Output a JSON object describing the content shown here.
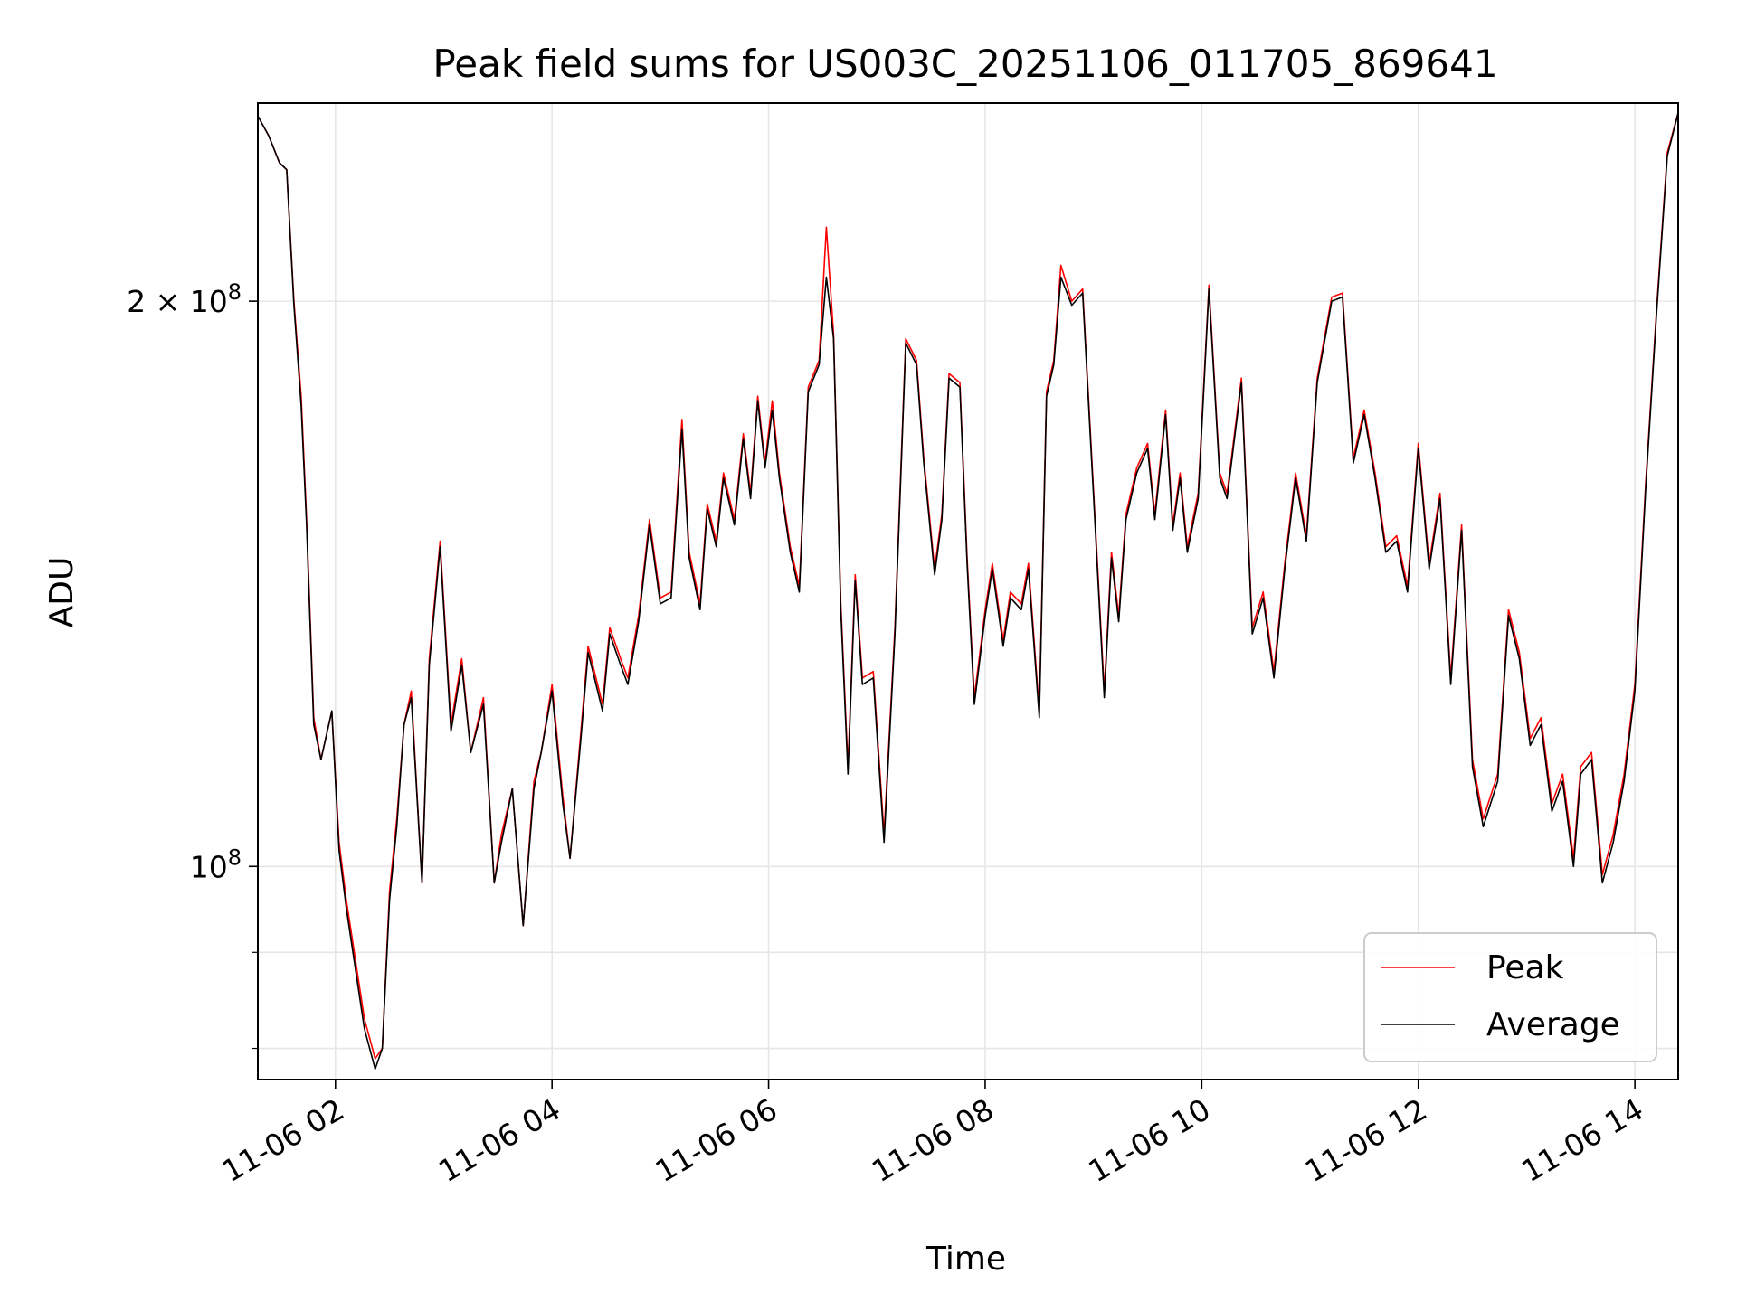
{
  "chart_data": {
    "type": "line",
    "title": "Peak field sums for US003C_20251106_011705_869641",
    "xlabel": "Time",
    "ylabel": "ADU",
    "yscale": "log",
    "ylim": [
      77000000,
      255000000
    ],
    "xlim": [
      "2025-11-06 01:17",
      "2025-11-06 14:24"
    ],
    "grid": true,
    "legend_position": "lower right",
    "x_ticks": [
      {
        "t": "2025-11-06 02:00",
        "label": "11-06 02"
      },
      {
        "t": "2025-11-06 04:00",
        "label": "11-06 04"
      },
      {
        "t": "2025-11-06 06:00",
        "label": "11-06 06"
      },
      {
        "t": "2025-11-06 08:00",
        "label": "11-06 08"
      },
      {
        "t": "2025-11-06 10:00",
        "label": "11-06 10"
      },
      {
        "t": "2025-11-06 12:00",
        "label": "11-06 12"
      },
      {
        "t": "2025-11-06 14:00",
        "label": "11-06 14"
      }
    ],
    "y_major_ticks": [
      {
        "value": 100000000,
        "base": "10",
        "exp": "8"
      },
      {
        "value": 200000000,
        "base": "2 × 10",
        "exp": "8"
      }
    ],
    "y_minor_ticks": [
      80000000,
      90000000
    ],
    "x": [
      "01:17",
      "01:23",
      "01:29",
      "01:33",
      "01:37",
      "01:41",
      "01:44",
      "01:48",
      "01:52",
      "01:58",
      "02:02",
      "02:06",
      "02:12",
      "02:16",
      "02:22",
      "02:26",
      "02:30",
      "02:34",
      "02:38",
      "02:42",
      "02:48",
      "02:52",
      "02:58",
      "03:04",
      "03:10",
      "03:15",
      "03:22",
      "03:28",
      "03:32",
      "03:38",
      "03:44",
      "03:50",
      "03:54",
      "04:00",
      "04:06",
      "04:10",
      "04:16",
      "04:20",
      "04:28",
      "04:32",
      "04:38",
      "04:42",
      "04:48",
      "04:54",
      "05:00",
      "05:06",
      "05:12",
      "05:16",
      "05:22",
      "05:26",
      "05:31",
      "05:35",
      "05:41",
      "05:46",
      "05:50",
      "05:54",
      "05:58",
      "06:02",
      "06:06",
      "06:12",
      "06:17",
      "06:22",
      "06:28",
      "06:32",
      "06:36",
      "06:40",
      "06:44",
      "06:48",
      "06:52",
      "06:58",
      "07:04",
      "07:10",
      "07:16",
      "07:22",
      "07:26",
      "07:32",
      "07:36",
      "07:40",
      "07:46",
      "07:50",
      "07:54",
      "08:00",
      "08:04",
      "08:10",
      "08:14",
      "08:20",
      "08:24",
      "08:30",
      "08:34",
      "08:38",
      "08:42",
      "08:48",
      "08:54",
      "09:00",
      "09:06",
      "09:10",
      "09:14",
      "09:18",
      "09:24",
      "09:30",
      "09:34",
      "09:40",
      "09:44",
      "09:48",
      "09:52",
      "09:58",
      "10:04",
      "10:10",
      "10:14",
      "10:22",
      "10:28",
      "10:34",
      "10:40",
      "10:46",
      "10:52",
      "10:58",
      "11:04",
      "11:12",
      "11:18",
      "11:24",
      "11:30",
      "11:36",
      "11:42",
      "11:48",
      "11:54",
      "12:00",
      "12:06",
      "12:12",
      "12:18",
      "12:24",
      "12:30",
      "12:36",
      "12:44",
      "12:50",
      "12:56",
      "13:02",
      "13:08",
      "13:14",
      "13:20",
      "13:26",
      "13:30",
      "13:36",
      "13:42",
      "13:48",
      "13:54",
      "14:00",
      "14:06",
      "14:12",
      "14:18",
      "14:24"
    ],
    "series": [
      {
        "name": "Peak",
        "color": "#ff0000",
        "values": [
          251000000.0,
          245000000.0,
          237000000.0,
          235000000.0,
          200000000.0,
          178000000.0,
          153000000.0,
          120000000.0,
          114000000.0,
          121000000.0,
          103000000.0,
          96000000.0,
          88000000.0,
          83000000.0,
          79000000.0,
          80000000.0,
          97000000.0,
          106000000.0,
          119000000.0,
          124000000.0,
          98000000.0,
          129000000.0,
          149000000.0,
          119000000.0,
          129000000.0,
          115000000.0,
          123000000.0,
          98000000.0,
          104000000.0,
          110000000.0,
          93000000.0,
          111000000.0,
          115000000.0,
          125000000.0,
          109000000.0,
          101000000.0,
          118000000.0,
          131000000.0,
          122000000.0,
          134000000.0,
          129000000.0,
          126000000.0,
          136000000.0,
          153000000.0,
          139000000.0,
          140000000.0,
          173000000.0,
          147000000.0,
          138000000.0,
          156000000.0,
          149000000.0,
          162000000.0,
          153000000.0,
          170000000.0,
          158000000.0,
          178000000.0,
          164000000.0,
          177000000.0,
          162000000.0,
          148000000.0,
          141000000.0,
          180000000.0,
          186000000.0,
          219000000.0,
          192000000.0,
          138000000.0,
          113000000.0,
          143000000.0,
          126000000.0,
          127000000.0,
          104000000.0,
          134000000.0,
          191000000.0,
          186000000.0,
          165000000.0,
          144000000.0,
          154000000.0,
          183000000.0,
          181000000.0,
          146000000.0,
          123000000.0,
          137000000.0,
          145000000.0,
          132000000.0,
          140000000.0,
          138000000.0,
          145000000.0,
          121000000.0,
          179000000.0,
          186000000.0,
          209000000.0,
          200000000.0,
          203000000.0,
          159000000.0,
          124000000.0,
          147000000.0,
          136000000.0,
          154000000.0,
          163000000.0,
          168000000.0,
          154000000.0,
          175000000.0,
          152000000.0,
          162000000.0,
          148000000.0,
          158000000.0,
          204000000.0,
          162000000.0,
          158000000.0,
          182000000.0,
          134000000.0,
          140000000.0,
          127000000.0,
          145000000.0,
          162000000.0,
          150000000.0,
          182000000.0,
          201000000.0,
          202000000.0,
          165000000.0,
          175000000.0,
          162000000.0,
          148000000.0,
          150000000.0,
          141000000.0,
          168000000.0,
          145000000.0,
          158000000.0,
          126000000.0,
          152000000.0,
          114000000.0,
          106000000.0,
          112000000.0,
          137000000.0,
          130000000.0,
          117000000.0,
          120000000.0,
          108000000.0,
          112000000.0,
          101000000.0,
          113000000.0,
          115000000.0,
          99000000.0,
          104000000.0,
          112000000.0,
          125000000.0,
          160000000.0,
          198000000.0,
          240000000.0,
          252000000.0
        ]
      },
      {
        "name": "Average",
        "color": "#000000",
        "values": [
          251000000.0,
          245000000.0,
          237000000.0,
          235000000.0,
          199000000.0,
          176000000.0,
          152000000.0,
          119000000.0,
          114000000.0,
          121000000.0,
          102000000.0,
          95000000.0,
          87000000.0,
          82000000.0,
          78000000.0,
          80000000.0,
          96000000.0,
          105000000.0,
          119000000.0,
          123000000.0,
          98000000.0,
          128000000.0,
          148000000.0,
          118000000.0,
          128000000.0,
          115000000.0,
          122000000.0,
          98000000.0,
          103000000.0,
          110000000.0,
          93000000.0,
          110000000.0,
          115000000.0,
          124000000.0,
          108000000.0,
          101000000.0,
          117000000.0,
          130000000.0,
          121000000.0,
          133000000.0,
          128000000.0,
          125000000.0,
          135000000.0,
          152000000.0,
          138000000.0,
          139000000.0,
          171000000.0,
          146000000.0,
          137000000.0,
          155000000.0,
          148000000.0,
          161000000.0,
          152000000.0,
          169000000.0,
          157000000.0,
          177000000.0,
          163000000.0,
          175000000.0,
          161000000.0,
          147000000.0,
          140000000.0,
          179000000.0,
          185000000.0,
          206000000.0,
          191000000.0,
          137000000.0,
          112000000.0,
          142000000.0,
          125000000.0,
          126000000.0,
          103000000.0,
          133000000.0,
          190000000.0,
          185000000.0,
          164000000.0,
          143000000.0,
          153000000.0,
          182000000.0,
          180000000.0,
          145000000.0,
          122000000.0,
          136000000.0,
          144000000.0,
          131000000.0,
          139000000.0,
          137000000.0,
          144000000.0,
          120000000.0,
          178000000.0,
          185000000.0,
          206000000.0,
          199000000.0,
          202000000.0,
          158000000.0,
          123000000.0,
          146000000.0,
          135000000.0,
          153000000.0,
          162000000.0,
          167000000.0,
          153000000.0,
          174000000.0,
          151000000.0,
          161000000.0,
          147000000.0,
          157000000.0,
          203000000.0,
          161000000.0,
          157000000.0,
          181000000.0,
          133000000.0,
          139000000.0,
          126000000.0,
          144000000.0,
          161000000.0,
          149000000.0,
          181000000.0,
          200000000.0,
          201000000.0,
          164000000.0,
          174000000.0,
          161000000.0,
          147000000.0,
          149000000.0,
          140000000.0,
          167000000.0,
          144000000.0,
          157000000.0,
          125000000.0,
          151000000.0,
          113000000.0,
          105000000.0,
          111000000.0,
          136000000.0,
          129000000.0,
          116000000.0,
          119000000.0,
          107000000.0,
          111000000.0,
          100000000.0,
          112000000.0,
          114000000.0,
          98000000.0,
          103000000.0,
          111000000.0,
          124000000.0,
          159000000.0,
          197000000.0,
          239000000.0,
          252000000.0
        ]
      }
    ]
  }
}
